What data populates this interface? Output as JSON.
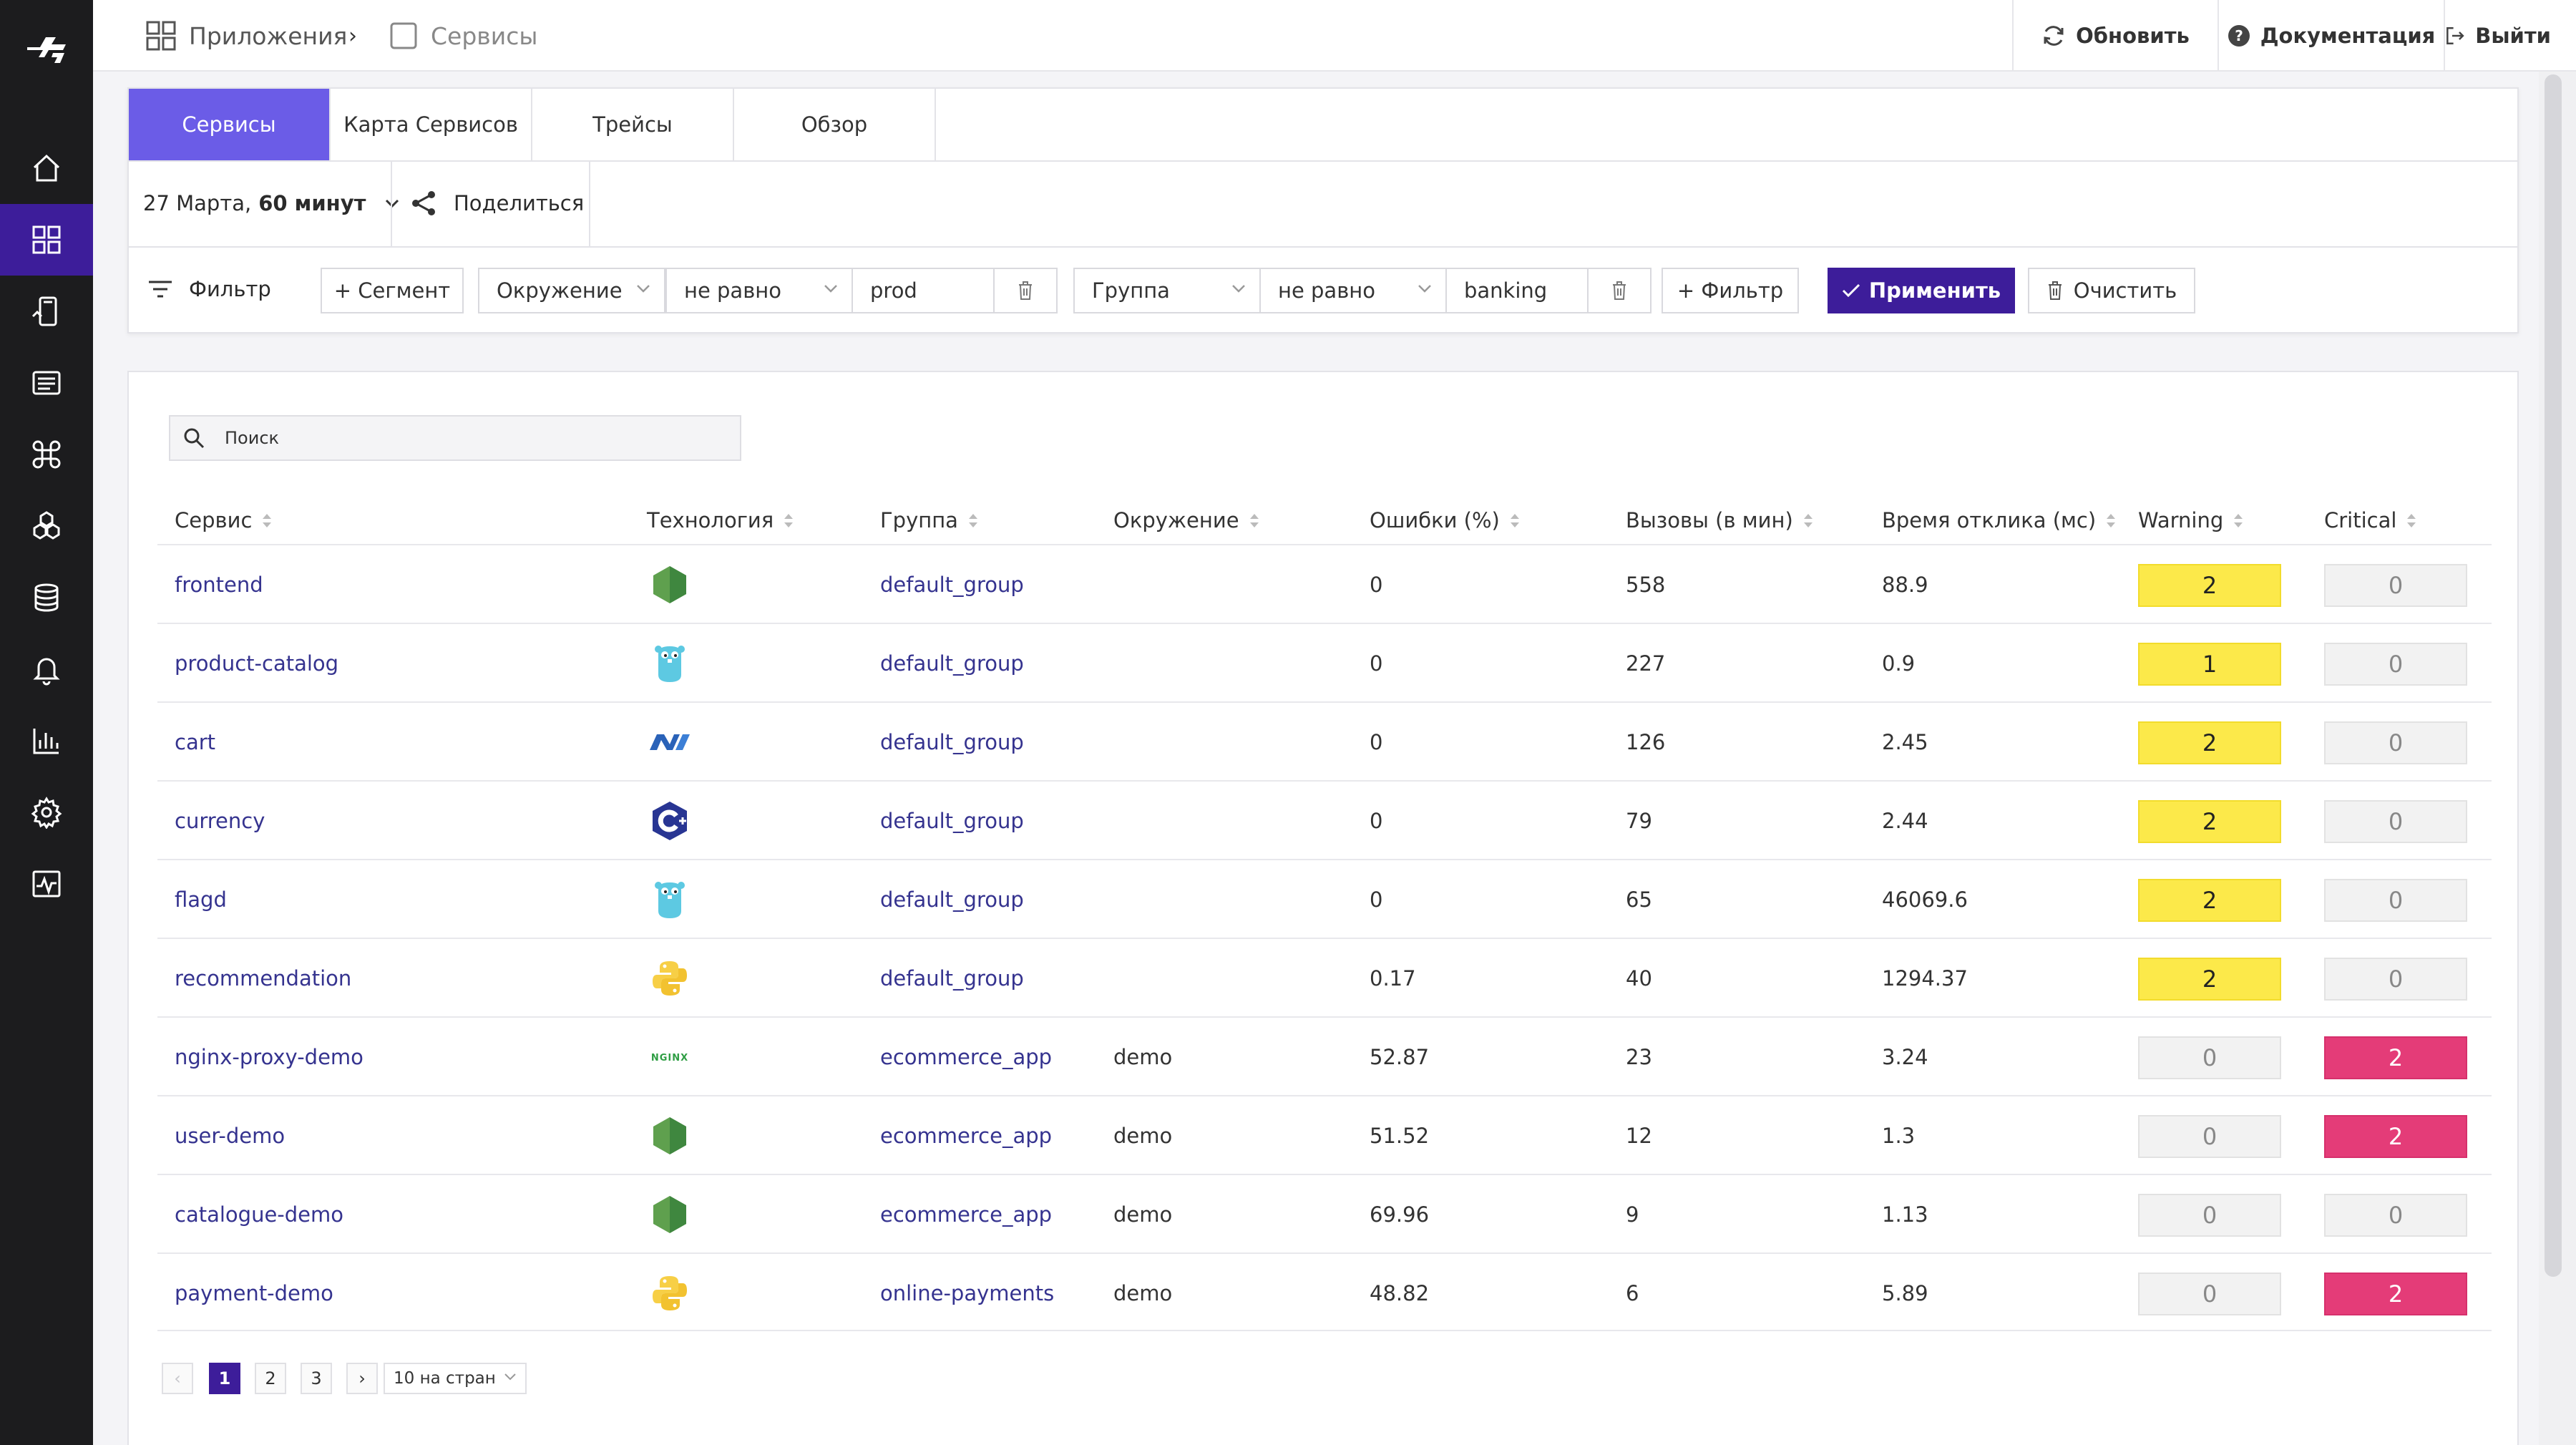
{
  "colors": {
    "sidebar": "#1c1c1e",
    "accent": "#3d1d9a",
    "tab_active": "#6b5ce7",
    "warning": "#fce94a",
    "critical": "#e43c78",
    "link": "#35338f"
  },
  "sidebar": {
    "items": [
      {
        "icon": "home-icon"
      },
      {
        "icon": "apps-grid-icon",
        "active": true
      },
      {
        "icon": "phone-chart-icon"
      },
      {
        "icon": "logs-list-icon"
      },
      {
        "icon": "command-icon"
      },
      {
        "icon": "hexagons-icon"
      },
      {
        "icon": "database-icon"
      },
      {
        "icon": "bell-icon"
      },
      {
        "icon": "bar-chart-icon"
      },
      {
        "icon": "gear-icon"
      },
      {
        "icon": "activity-icon"
      }
    ]
  },
  "topbar": {
    "breadcrumb_apps": "Приложения",
    "breadcrumb_sep": "›",
    "breadcrumb_services": "Сервисы",
    "refresh": "Обновить",
    "docs": "Документация",
    "logout": "Выйти"
  },
  "tabs": [
    "Сервисы",
    "Карта Сервисов",
    "Трейсы",
    "Обзор"
  ],
  "time": {
    "date": "27 Марта,",
    "range": "60 минут"
  },
  "share": "Поделиться",
  "filter": {
    "label": "Фильтр",
    "segment": "+ Сегмент",
    "f1_field": "Окружение",
    "f1_op": "не равно",
    "f1_value": "prod",
    "f2_field": "Группа",
    "f2_op": "не равно",
    "f2_value": "banking",
    "add_filter": "+ Фильтр",
    "apply": "Применить",
    "clear": "Очистить"
  },
  "search": {
    "placeholder": "Поиск"
  },
  "table": {
    "headers": [
      "Сервис",
      "Технология",
      "Группа",
      "Окружение",
      "Ошибки (%)",
      "Вызовы (в мин)",
      "Время отклика (мс)",
      "Warning",
      "Critical"
    ],
    "rows": [
      {
        "service": "frontend",
        "tech": "nodejs-icon",
        "group": "default_group",
        "env": "",
        "errors": "0",
        "calls": "558",
        "latency": "88.9",
        "warning": "2",
        "critical": "0"
      },
      {
        "service": "product-catalog",
        "tech": "go-gopher-icon",
        "group": "default_group",
        "env": "",
        "errors": "0",
        "calls": "227",
        "latency": "0.9",
        "warning": "1",
        "critical": "0"
      },
      {
        "service": "cart",
        "tech": "dotnet-icon",
        "group": "default_group",
        "env": "",
        "errors": "0",
        "calls": "126",
        "latency": "2.45",
        "warning": "2",
        "critical": "0"
      },
      {
        "service": "currency",
        "tech": "cpp-icon",
        "group": "default_group",
        "env": "",
        "errors": "0",
        "calls": "79",
        "latency": "2.44",
        "warning": "2",
        "critical": "0"
      },
      {
        "service": "flagd",
        "tech": "go-gopher-icon",
        "group": "default_group",
        "env": "",
        "errors": "0",
        "calls": "65",
        "latency": "46069.6",
        "warning": "2",
        "critical": "0"
      },
      {
        "service": "recommendation",
        "tech": "python-icon",
        "group": "default_group",
        "env": "",
        "errors": "0.17",
        "calls": "40",
        "latency": "1294.37",
        "warning": "2",
        "critical": "0"
      },
      {
        "service": "nginx-proxy-demo",
        "tech": "nginx-icon",
        "group": "ecommerce_app",
        "env": "demo",
        "errors": "52.87",
        "calls": "23",
        "latency": "3.24",
        "warning": "0",
        "critical": "2"
      },
      {
        "service": "user-demo",
        "tech": "nodejs-icon",
        "group": "ecommerce_app",
        "env": "demo",
        "errors": "51.52",
        "calls": "12",
        "latency": "1.3",
        "warning": "0",
        "critical": "2"
      },
      {
        "service": "catalogue-demo",
        "tech": "nodejs-icon",
        "group": "ecommerce_app",
        "env": "demo",
        "errors": "69.96",
        "calls": "9",
        "latency": "1.13",
        "warning": "0",
        "critical": "0"
      },
      {
        "service": "payment-demo",
        "tech": "python-icon",
        "group": "online-payments",
        "env": "demo",
        "errors": "48.82",
        "calls": "6",
        "latency": "5.89",
        "warning": "0",
        "critical": "2"
      }
    ]
  },
  "pagination": {
    "prev": "‹",
    "pages": [
      "1",
      "2",
      "3"
    ],
    "current": "1",
    "next": "›",
    "page_size": "10 на стран"
  }
}
